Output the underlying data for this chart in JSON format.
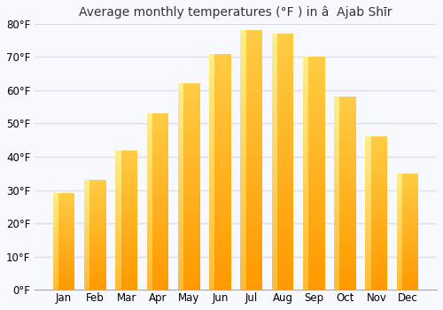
{
  "title": "Average monthly temperatures (°F ) in â  Ajab Shīr",
  "months": [
    "Jan",
    "Feb",
    "Mar",
    "Apr",
    "May",
    "Jun",
    "Jul",
    "Aug",
    "Sep",
    "Oct",
    "Nov",
    "Dec"
  ],
  "values": [
    29,
    33,
    42,
    53,
    62,
    71,
    78,
    77,
    70,
    58,
    46,
    35
  ],
  "ylim": [
    0,
    80
  ],
  "yticks": [
    0,
    10,
    20,
    30,
    40,
    50,
    60,
    70,
    80
  ],
  "ytick_labels": [
    "0°F",
    "10°F",
    "20°F",
    "30°F",
    "40°F",
    "50°F",
    "60°F",
    "70°F",
    "80°F"
  ],
  "bar_color_top": "#FFCC44",
  "bar_color_bottom": "#FF9900",
  "bar_color_highlight": "#FFE066",
  "background_color": "#f8f8ff",
  "plot_bg_color": "#f8f8ff",
  "grid_color": "#ddddee",
  "title_fontsize": 10,
  "tick_fontsize": 8.5,
  "bar_width": 0.7
}
